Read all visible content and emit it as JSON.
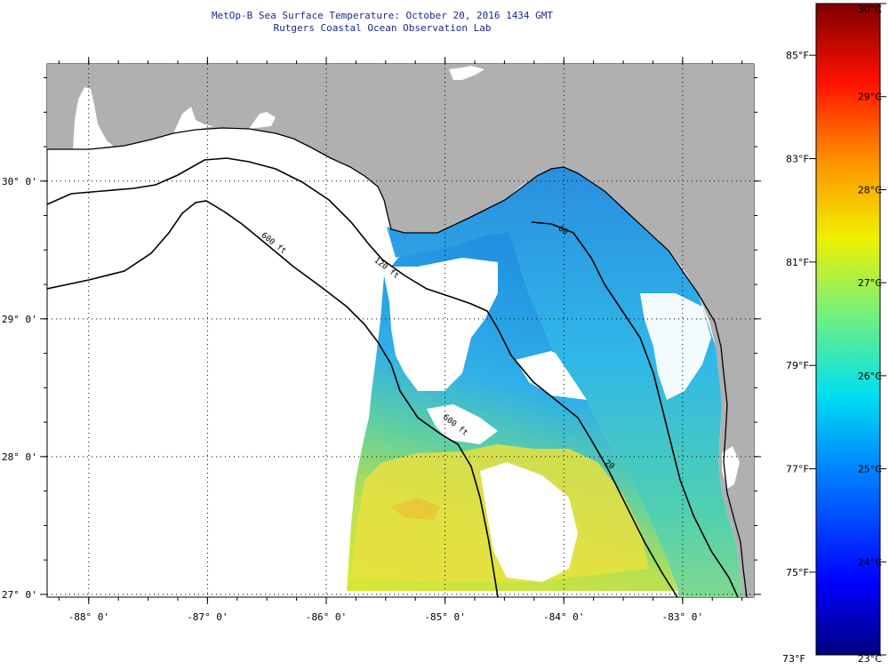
{
  "title": {
    "line1": "MetOp-B Sea Surface Temperature:  October 20, 2016 1434 GMT",
    "line2": "Rutgers Coastal Ocean Observation Lab"
  },
  "map": {
    "lon_range": [
      -88.35,
      -82.4
    ],
    "lat_range": [
      26.98,
      30.85
    ],
    "lon_ticks": [
      {
        "value": -88,
        "label": "-88° 0'"
      },
      {
        "value": -87,
        "label": "-87° 0'"
      },
      {
        "value": -86,
        "label": "-86° 0'"
      },
      {
        "value": -85,
        "label": "-85° 0'"
      },
      {
        "value": -84,
        "label": "-84° 0'"
      },
      {
        "value": -83,
        "label": "-83° 0'"
      }
    ],
    "lat_ticks": [
      {
        "value": 30,
        "label": "30° 0'"
      },
      {
        "value": 29,
        "label": "29° 0'"
      },
      {
        "value": 28,
        "label": "28° 0'"
      },
      {
        "value": 27,
        "label": "27° 0'"
      }
    ],
    "contours": [
      {
        "label": "600 ft",
        "lon": -86.55,
        "lat": 29.6
      },
      {
        "label": "120 ft",
        "lon": -85.6,
        "lat": 29.42
      },
      {
        "label": "600 ft",
        "lon": -85.02,
        "lat": 28.28
      },
      {
        "label": "60",
        "lon": -84.05,
        "lat": 29.65
      },
      {
        "label": "20",
        "lon": -83.66,
        "lat": 27.95
      }
    ],
    "colors": {
      "land": "#b0b0b0",
      "water_nodata": "#ffffff",
      "grid": "#000000"
    }
  },
  "colorbar": {
    "c_min": 23,
    "c_max": 30,
    "celsius_labels": [
      "30°C",
      "29°C",
      "28°C",
      "27°C",
      "26°C",
      "25°C",
      "24°C",
      "23°C"
    ],
    "fahrenheit_labels": [
      "85°F",
      "83°F",
      "81°F",
      "79°F",
      "77°F",
      "75°F",
      "73°F"
    ],
    "fahrenheit_values": [
      85,
      83,
      81,
      79,
      77,
      75,
      73
    ]
  }
}
